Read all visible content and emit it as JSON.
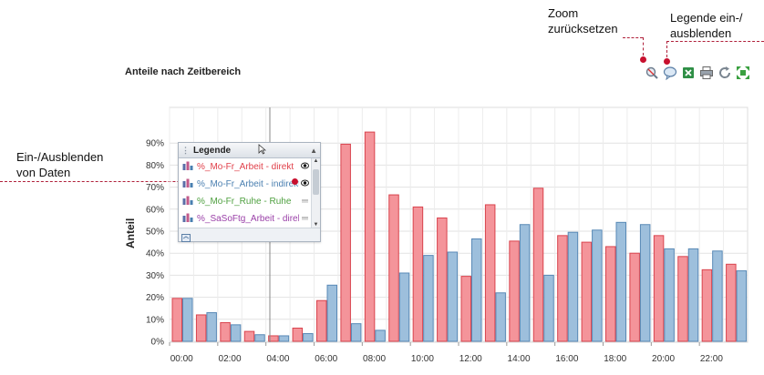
{
  "annotations": {
    "zoom_reset": [
      "Zoom",
      "zurücksetzen"
    ],
    "legend_toggle": [
      "Legende ein-/",
      "ausblenden"
    ],
    "data_toggle": [
      "Ein-/Ausblenden",
      "von Daten"
    ]
  },
  "chart_title": "Anteile nach Zeitbereich",
  "toolbar": {
    "icons": [
      "zoom-reset-icon",
      "legend-toggle-icon",
      "excel-export-icon",
      "print-icon",
      "refresh-icon",
      "fullscreen-icon"
    ]
  },
  "legend": {
    "title": "Legende",
    "items": [
      {
        "label": "%_Mo-Fr_Arbeit - direkt",
        "color": "#e0404a",
        "visible_icon": "eye-icon"
      },
      {
        "label": "%_Mo-Fr_Arbeit - indirekt",
        "color": "#4a7fb0",
        "visible_icon": "eye-icon"
      },
      {
        "label": "%_Mo-Fr_Ruhe - Ruhe",
        "color": "#4fa040",
        "visible_icon": "hidden-icon"
      },
      {
        "label": "%_SaSoFtg_Arbeit - direkt",
        "color": "#9a40a8",
        "visible_icon": "hidden-icon"
      }
    ]
  },
  "chart_data": {
    "type": "bar",
    "ylabel": "Anteil",
    "ylim": [
      0,
      95
    ],
    "yticks": [
      "0%",
      "10%",
      "20%",
      "30%",
      "40%",
      "50%",
      "60%",
      "70%",
      "80%",
      "90%"
    ],
    "xticks": [
      "00:00",
      "02:00",
      "04:00",
      "06:00",
      "08:00",
      "10:00",
      "12:00",
      "14:00",
      "16:00",
      "18:00",
      "20:00",
      "22:00"
    ],
    "grid": true,
    "colors": {
      "red_fill": "#f4949a",
      "red_stroke": "#d9434d",
      "blue_fill": "#9dbfdc",
      "blue_stroke": "#5889b6"
    },
    "series": [
      {
        "name": "%_Mo-Fr_Arbeit - direkt",
        "values": [
          19.5,
          12,
          8.5,
          4.5,
          2.5,
          6,
          18.5,
          89.5,
          95,
          66.5,
          61,
          56,
          29.5,
          62,
          45.5,
          69.5,
          48,
          45,
          43,
          40,
          48,
          38.5,
          32.5,
          35
        ]
      },
      {
        "name": "%_Mo-Fr_Arbeit - indirekt",
        "values": [
          19.5,
          13,
          7.5,
          3,
          2.5,
          3.5,
          25.5,
          8,
          5,
          31,
          39,
          40.5,
          46.5,
          22,
          53,
          30,
          49.5,
          50.5,
          54,
          53,
          42,
          42,
          41,
          32
        ]
      }
    ]
  }
}
